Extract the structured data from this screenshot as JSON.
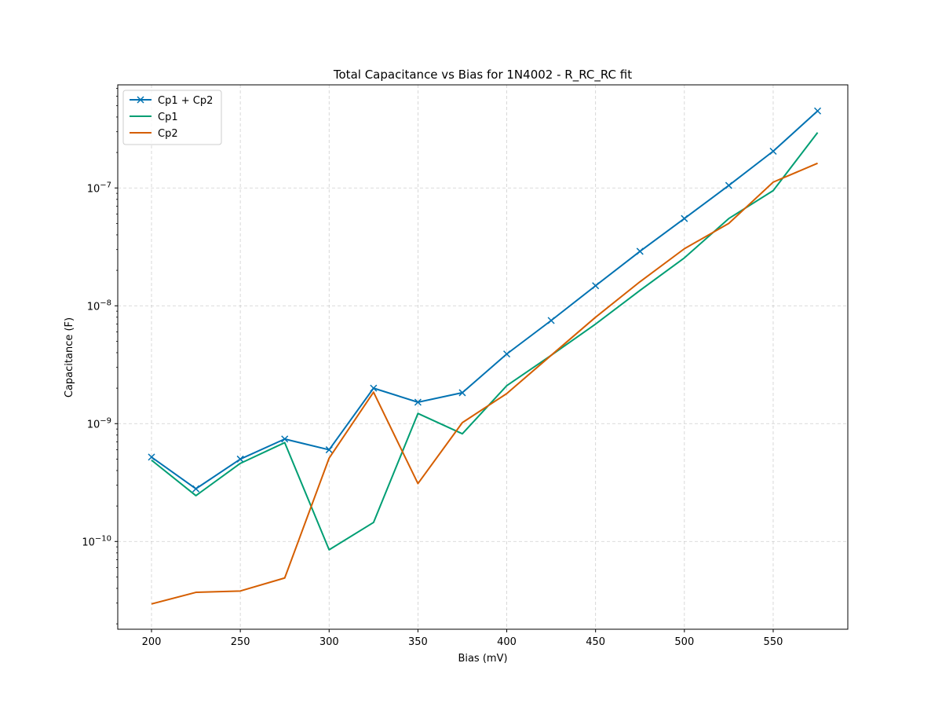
{
  "chart_data": {
    "type": "line",
    "title": "Total Capacitance vs Bias for 1N4002 - R_RC_RC fit",
    "xlabel": "Bias (mV)",
    "ylabel": "Capacitance (F)",
    "yscale": "log",
    "xlim": [
      181,
      592
    ],
    "ylim": [
      1.8e-11,
      7.5e-07
    ],
    "x_ticks": [
      200,
      250,
      300,
      350,
      400,
      450,
      500,
      550
    ],
    "y_ticks": [
      {
        "value": 1e-10,
        "base": "10",
        "exp": "−10"
      },
      {
        "value": 1e-09,
        "base": "10",
        "exp": "−9"
      },
      {
        "value": 1e-08,
        "base": "10",
        "exp": "−8"
      },
      {
        "value": 1e-07,
        "base": "10",
        "exp": "−7"
      }
    ],
    "grid": true,
    "legend_position": "upper-left",
    "x": [
      200,
      225,
      250,
      275,
      300,
      325,
      350,
      375,
      400,
      425,
      450,
      475,
      500,
      525,
      550,
      575
    ],
    "series": [
      {
        "name": "Cp1 + Cp2",
        "color": "#0072b2",
        "marker": "x",
        "values": [
          5.2e-10,
          2.8e-10,
          5e-10,
          7.4e-10,
          6e-10,
          2e-09,
          1.52e-09,
          1.83e-09,
          3.9e-09,
          7.5e-09,
          1.48e-08,
          2.9e-08,
          5.5e-08,
          1.05e-07,
          2.05e-07,
          4.5e-07
        ]
      },
      {
        "name": "Cp1",
        "color": "#009e73",
        "marker": "none",
        "values": [
          4.9e-10,
          2.45e-10,
          4.6e-10,
          6.9e-10,
          8.5e-11,
          1.45e-10,
          1.22e-09,
          8.2e-10,
          2.1e-09,
          3.8e-09,
          7e-09,
          1.35e-08,
          2.55e-08,
          5.5e-08,
          9.5e-08,
          2.95e-07
        ]
      },
      {
        "name": "Cp2",
        "color": "#d55e00",
        "marker": "none",
        "values": [
          2.95e-11,
          3.7e-11,
          3.8e-11,
          4.9e-11,
          5.1e-10,
          1.85e-09,
          3.1e-10,
          1.02e-09,
          1.8e-09,
          3.8e-09,
          8e-09,
          1.6e-08,
          3.05e-08,
          5e-08,
          1.12e-07,
          1.62e-07
        ]
      }
    ]
  }
}
